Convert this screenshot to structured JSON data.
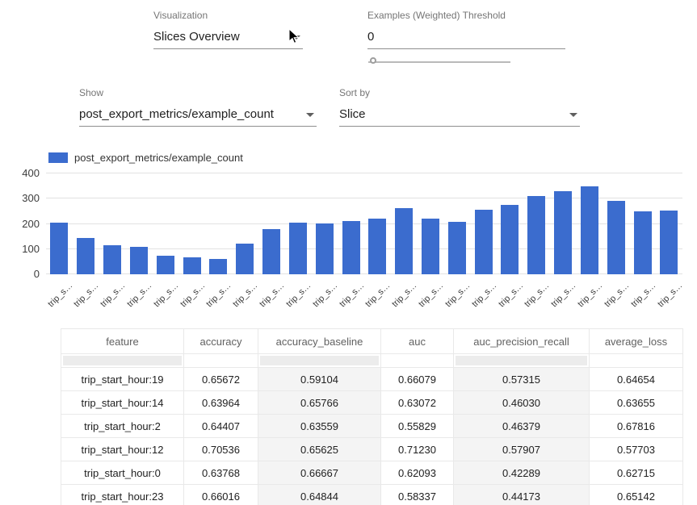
{
  "controls": {
    "visualization": {
      "label": "Visualization",
      "value": "Slices Overview"
    },
    "threshold": {
      "label": "Examples (Weighted) Threshold",
      "value": "0",
      "slider_position": 0
    },
    "show": {
      "label": "Show",
      "value": "post_export_metrics/example_count"
    },
    "sort_by": {
      "label": "Sort by",
      "value": "Slice"
    }
  },
  "chart_data": {
    "type": "bar",
    "series_name": "post_export_metrics/example_count",
    "bar_color": "#3b6cce",
    "legend_position": "top-left",
    "grid": true,
    "ylim": [
      0,
      400
    ],
    "yticks": [
      0,
      100,
      200,
      300,
      400
    ],
    "categories": [
      "trip_s…",
      "trip_s…",
      "trip_s…",
      "trip_s…",
      "trip_s…",
      "trip_s…",
      "trip_s…",
      "trip_s…",
      "trip_s…",
      "trip_s…",
      "trip_s…",
      "trip_s…",
      "trip_s…",
      "trip_s…",
      "trip_s…",
      "trip_s…",
      "trip_s…",
      "trip_s…",
      "trip_s…",
      "trip_s…",
      "trip_s…",
      "trip_s…",
      "trip_s…",
      "trip_s…"
    ],
    "values": [
      205,
      145,
      114,
      110,
      75,
      66,
      61,
      122,
      179,
      205,
      202,
      211,
      222,
      263,
      221,
      209,
      257,
      274,
      310,
      330,
      349,
      290,
      251,
      254
    ],
    "xlabel": "",
    "ylabel": ""
  },
  "table": {
    "columns": [
      "feature",
      "accuracy",
      "accuracy_baseline",
      "auc",
      "auc_precision_recall",
      "average_loss"
    ],
    "filter_boxes": [
      true,
      false,
      true,
      false,
      true,
      false
    ],
    "rows": [
      [
        "trip_start_hour:19",
        "0.65672",
        "0.59104",
        "0.66079",
        "0.57315",
        "0.64654"
      ],
      [
        "trip_start_hour:14",
        "0.63964",
        "0.65766",
        "0.63072",
        "0.46030",
        "0.63655"
      ],
      [
        "trip_start_hour:2",
        "0.64407",
        "0.63559",
        "0.55829",
        "0.46379",
        "0.67816"
      ],
      [
        "trip_start_hour:12",
        "0.70536",
        "0.65625",
        "0.71230",
        "0.57907",
        "0.57703"
      ],
      [
        "trip_start_hour:0",
        "0.63768",
        "0.66667",
        "0.62093",
        "0.42289",
        "0.62715"
      ],
      [
        "trip_start_hour:23",
        "0.66016",
        "0.64844",
        "0.58337",
        "0.44173",
        "0.65142"
      ]
    ]
  }
}
